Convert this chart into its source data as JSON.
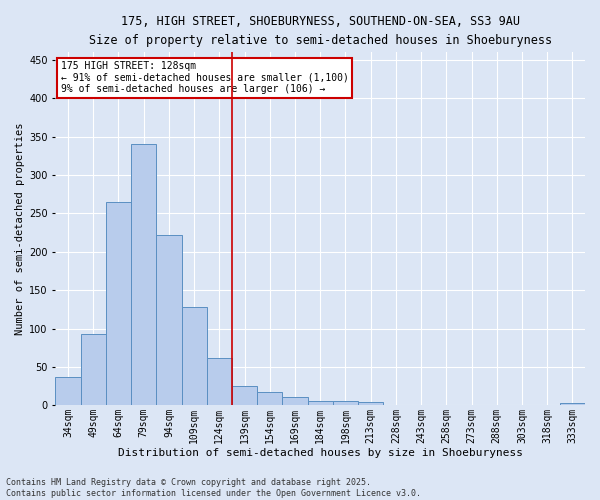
{
  "title": "175, HIGH STREET, SHOEBURYNESS, SOUTHEND-ON-SEA, SS3 9AU",
  "subtitle": "Size of property relative to semi-detached houses in Shoeburyness",
  "xlabel": "Distribution of semi-detached houses by size in Shoeburyness",
  "ylabel": "Number of semi-detached properties",
  "categories": [
    "34sqm",
    "49sqm",
    "64sqm",
    "79sqm",
    "94sqm",
    "109sqm",
    "124sqm",
    "139sqm",
    "154sqm",
    "169sqm",
    "184sqm",
    "198sqm",
    "213sqm",
    "228sqm",
    "243sqm",
    "258sqm",
    "273sqm",
    "288sqm",
    "303sqm",
    "318sqm",
    "333sqm"
  ],
  "values": [
    37,
    93,
    265,
    340,
    222,
    128,
    61,
    25,
    17,
    11,
    5,
    5,
    4,
    0,
    0,
    0,
    0,
    0,
    0,
    0,
    3
  ],
  "bar_color": "#b8ccec",
  "bar_edge_color": "#5a8fc2",
  "background_color": "#dce6f5",
  "fig_background_color": "#dce6f5",
  "grid_color": "#ffffff",
  "vline_x": 6.5,
  "vline_color": "#cc0000",
  "annotation_line1": "175 HIGH STREET: 128sqm",
  "annotation_line2": "← 91% of semi-detached houses are smaller (1,100)",
  "annotation_line3": "9% of semi-detached houses are larger (106) →",
  "annotation_box_color": "#cc0000",
  "footer_line1": "Contains HM Land Registry data © Crown copyright and database right 2025.",
  "footer_line2": "Contains public sector information licensed under the Open Government Licence v3.0.",
  "ylim": [
    0,
    460
  ],
  "yticks": [
    0,
    50,
    100,
    150,
    200,
    250,
    300,
    350,
    400,
    450
  ],
  "title_fontsize": 8.5,
  "subtitle_fontsize": 8,
  "tick_fontsize": 7,
  "ylabel_fontsize": 7.5,
  "xlabel_fontsize": 8,
  "annotation_fontsize": 7,
  "footer_fontsize": 6
}
